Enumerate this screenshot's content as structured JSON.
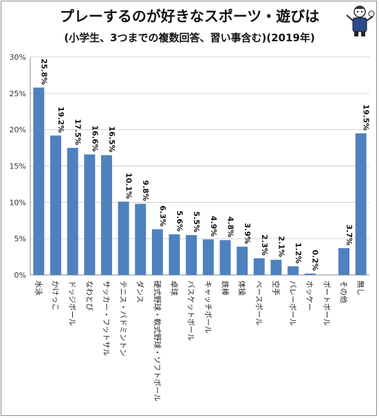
{
  "chart_data": {
    "type": "bar",
    "title": "プレーするのが好きなスポーツ・遊びは",
    "subtitle": "(小学生、3つまでの複数回答、習い事含む)(2019年)",
    "categories": [
      "水泳",
      "かけっこ",
      "ドッジボール",
      "なわとび",
      "サッカー・フットサル",
      "テニス・バドミントン",
      "ダンス",
      "硬式野球・軟式野球・ソフトボール",
      "卓球",
      "バスケットボール",
      "キャッチボール",
      "鉄棒",
      "体操",
      "ベースボール",
      "空手",
      "バレーボール",
      "ホッケー",
      "ボートボール",
      "その他",
      "無し"
    ],
    "values": [
      25.8,
      19.2,
      17.5,
      16.6,
      16.5,
      10.1,
      9.8,
      6.3,
      5.6,
      5.5,
      4.9,
      4.8,
      3.9,
      2.3,
      2.1,
      1.2,
      0.2,
      null,
      3.7,
      19.5
    ],
    "data_labels": [
      "25.8%",
      "19.2%",
      "17.5%",
      "16.6%",
      "16.5%",
      "10.1%",
      "9.8%",
      "6.3%",
      "5.6%",
      "5.5%",
      "4.9%",
      "4.8%",
      "3.9%",
      "2.3%",
      "2.1%",
      "1.2%",
      "0.2%",
      "",
      "3.7%",
      "19.5%"
    ],
    "ylim": [
      0,
      30
    ],
    "yticks": [
      "0%",
      "5%",
      "10%",
      "15%",
      "20%",
      "25%",
      "30%"
    ],
    "gridlines": true,
    "bar_color": "#4f81bd"
  }
}
